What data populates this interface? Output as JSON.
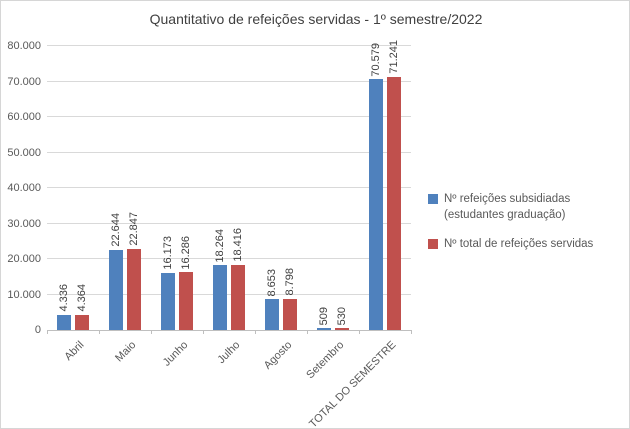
{
  "chart_data": {
    "type": "bar",
    "title": "Quantitativo de refeições servidas - 1º semestre/2022",
    "categories": [
      "Abril",
      "Maio",
      "Junho",
      "Julho",
      "Agosto",
      "Setembro",
      "TOTAL DO SEMESTRE"
    ],
    "series": [
      {
        "name": "Nº refeições subsidiadas (estudantes graduação)",
        "color": "#4F81BD",
        "values": [
          4336,
          22644,
          16173,
          18264,
          8653,
          509,
          70579
        ],
        "labels": [
          "4.336",
          "22.644",
          "16.173",
          "18.264",
          "8.653",
          "509",
          "70.579"
        ]
      },
      {
        "name": "Nº total de refeições servidas",
        "color": "#C0504D",
        "values": [
          4364,
          22847,
          16286,
          18416,
          8798,
          530,
          71241
        ],
        "labels": [
          "4.364",
          "22.847",
          "16.286",
          "18.416",
          "8.798",
          "530",
          "71.241"
        ]
      }
    ],
    "y_axis": {
      "min": 0,
      "max": 80000,
      "step": 10000,
      "tick_labels": [
        "0",
        "10.000",
        "20.000",
        "30.000",
        "40.000",
        "50.000",
        "60.000",
        "70.000",
        "80.000"
      ]
    },
    "legend_position": "right",
    "grid": true,
    "colors": {
      "gridline": "#d9d9d9",
      "axis_line": "#bfbfbf",
      "text_muted": "#595959",
      "text_dark": "#404040"
    }
  }
}
